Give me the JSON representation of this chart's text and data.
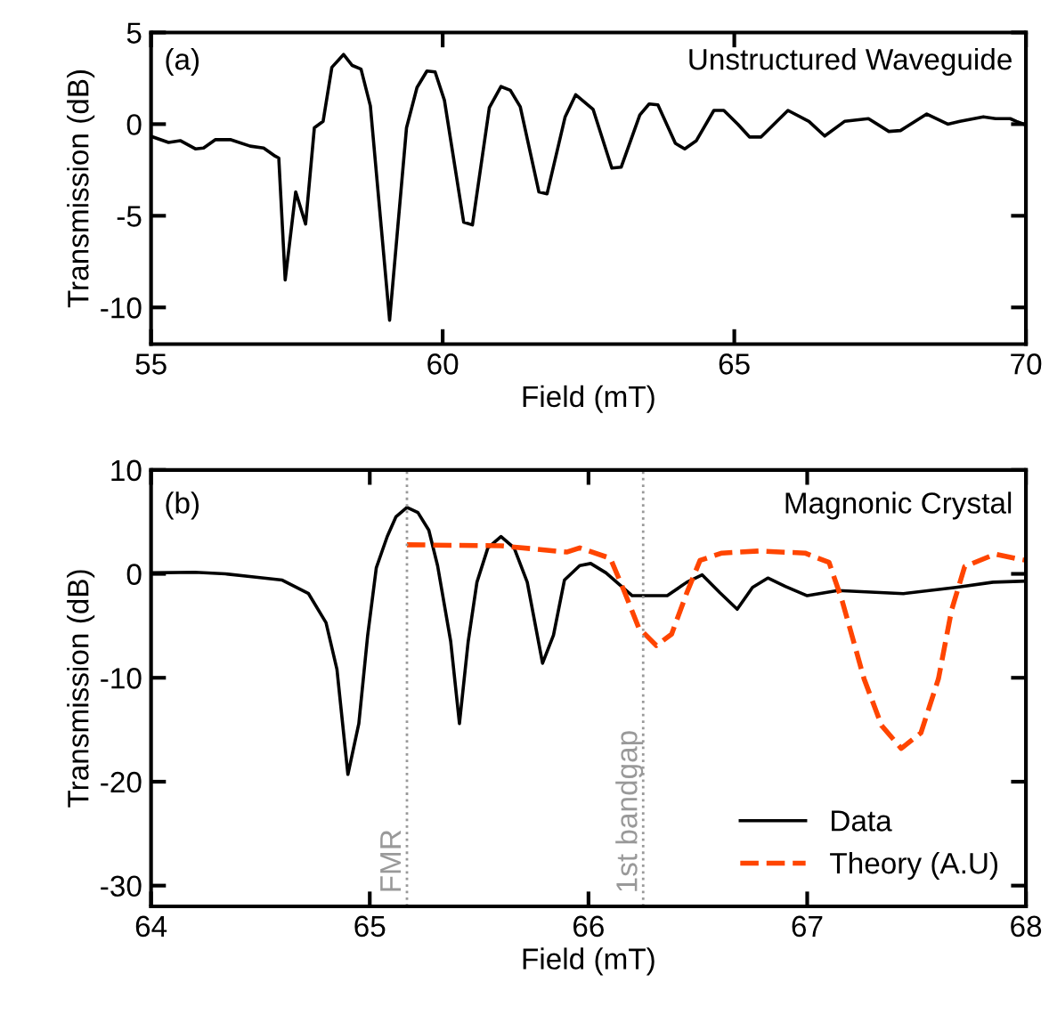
{
  "chart_data": [
    {
      "type": "line",
      "title": "Unstructured Waveguide",
      "xlabel": "Field (mT)",
      "ylabel": "Transmission (dB)",
      "annotations": [
        "(a)"
      ],
      "xlim": [
        55,
        70
      ],
      "ylim": [
        -12,
        5
      ],
      "xticks": [
        55,
        60,
        65,
        70
      ],
      "yticks": [
        -10,
        -5,
        0,
        5
      ],
      "grid": false,
      "legend": false,
      "series": [
        {
          "color": "#000000",
          "line_style": "solid",
          "x": [
            55.03,
            55.3,
            55.5,
            55.76,
            55.9,
            56.1,
            56.37,
            56.7,
            56.93,
            57.13,
            57.19,
            57.3,
            57.48,
            57.65,
            57.8,
            57.95,
            58.1,
            58.3,
            58.45,
            58.6,
            58.76,
            59.09,
            59.38,
            59.56,
            59.73,
            59.87,
            60.03,
            60.36,
            60.51,
            60.8,
            61.0,
            61.16,
            61.33,
            61.65,
            61.79,
            62.1,
            62.28,
            62.58,
            62.9,
            63.06,
            63.38,
            63.54,
            63.69,
            63.99,
            64.15,
            64.35,
            64.65,
            64.82,
            65.06,
            65.26,
            65.46,
            65.92,
            66.28,
            66.55,
            66.89,
            67.3,
            67.65,
            67.85,
            68.3,
            68.66,
            68.87,
            69.27,
            69.48,
            69.73,
            69.84,
            70.0
          ],
          "values": [
            -0.7,
            -1.0,
            -0.9,
            -1.35,
            -1.3,
            -0.85,
            -0.85,
            -1.2,
            -1.3,
            -1.75,
            -1.85,
            -8.5,
            -3.7,
            -5.45,
            -0.2,
            0.15,
            3.1,
            3.8,
            3.2,
            3.0,
            1.0,
            -10.7,
            -0.2,
            2.0,
            2.9,
            2.85,
            1.3,
            -5.35,
            -5.5,
            0.9,
            2.05,
            1.85,
            0.95,
            -3.7,
            -3.8,
            0.4,
            1.6,
            0.8,
            -2.4,
            -2.35,
            0.5,
            1.1,
            1.05,
            -1.05,
            -1.35,
            -0.9,
            0.75,
            0.75,
            0.0,
            -0.7,
            -0.7,
            0.75,
            0.15,
            -0.65,
            0.15,
            0.3,
            -0.4,
            -0.35,
            0.55,
            0.0,
            0.15,
            0.4,
            0.3,
            0.3,
            0.15,
            -0.05
          ]
        }
      ]
    },
    {
      "type": "line",
      "title": "Magnonic Crystal",
      "xlabel": "Field (mT)",
      "ylabel": "Transmission (dB)",
      "annotations": [
        "(b)"
      ],
      "xlim": [
        64,
        68
      ],
      "ylim": [
        -32,
        10
      ],
      "xticks": [
        64,
        65,
        66,
        67,
        68
      ],
      "yticks": [
        -30,
        -20,
        -10,
        0,
        10
      ],
      "grid": false,
      "legend": "bottom right",
      "ref_lines": [
        {
          "axis": "x",
          "value": 65.17,
          "label": "FMR",
          "color": "#999999",
          "line_style": "dotted"
        },
        {
          "axis": "x",
          "value": 66.25,
          "label": "1st bandgap",
          "color": "#999999",
          "line_style": "dotted"
        }
      ],
      "series": [
        {
          "name": "Data",
          "color": "#000000",
          "line_style": "solid",
          "x": [
            64.0,
            64.2,
            64.34,
            64.47,
            64.6,
            64.72,
            64.8,
            64.85,
            64.9,
            64.95,
            64.99,
            65.03,
            65.06,
            65.08,
            65.12,
            65.17,
            65.22,
            65.27,
            65.31,
            65.37,
            65.41,
            65.45,
            65.49,
            65.54,
            65.6,
            65.66,
            65.72,
            65.79,
            65.84,
            65.89,
            65.96,
            66.01,
            66.08,
            66.2,
            66.36,
            66.45,
            66.52,
            66.6,
            66.68,
            66.75,
            66.82,
            66.9,
            67.0,
            67.14,
            67.44,
            67.68,
            67.85,
            68.0
          ],
          "values": [
            0.1,
            0.15,
            0.0,
            -0.3,
            -0.6,
            -1.9,
            -4.7,
            -9.2,
            -19.3,
            -14.4,
            -6.0,
            0.6,
            2.4,
            3.6,
            5.5,
            6.4,
            5.9,
            4.2,
            0.8,
            -6.5,
            -14.4,
            -6.5,
            -0.8,
            2.5,
            3.6,
            2.5,
            -0.8,
            -8.6,
            -5.9,
            -0.6,
            0.8,
            1.0,
            0.1,
            -2.1,
            -2.1,
            -0.8,
            -0.1,
            -1.8,
            -3.4,
            -1.3,
            -0.4,
            -1.2,
            -2.1,
            -1.6,
            -1.9,
            -1.3,
            -0.8,
            -0.7
          ]
        },
        {
          "name": "Theory (A.U)",
          "color": "#ff4500",
          "line_style": "dashed",
          "x": [
            65.17,
            65.6,
            65.9,
            65.96,
            66.1,
            66.16,
            66.23,
            66.31,
            66.38,
            66.45,
            66.51,
            66.61,
            66.78,
            66.99,
            67.1,
            67.16,
            67.26,
            67.34,
            67.43,
            67.52,
            67.6,
            67.66,
            67.72,
            67.86,
            67.95,
            68.0
          ],
          "values": [
            2.8,
            2.7,
            2.1,
            2.5,
            1.5,
            -1.5,
            -5.2,
            -6.9,
            -5.8,
            -1.8,
            1.3,
            2.0,
            2.2,
            2.0,
            1.1,
            -2.6,
            -10.1,
            -14.6,
            -16.8,
            -15.3,
            -10.1,
            -3.5,
            0.7,
            1.9,
            1.5,
            1.3
          ]
        }
      ]
    }
  ]
}
